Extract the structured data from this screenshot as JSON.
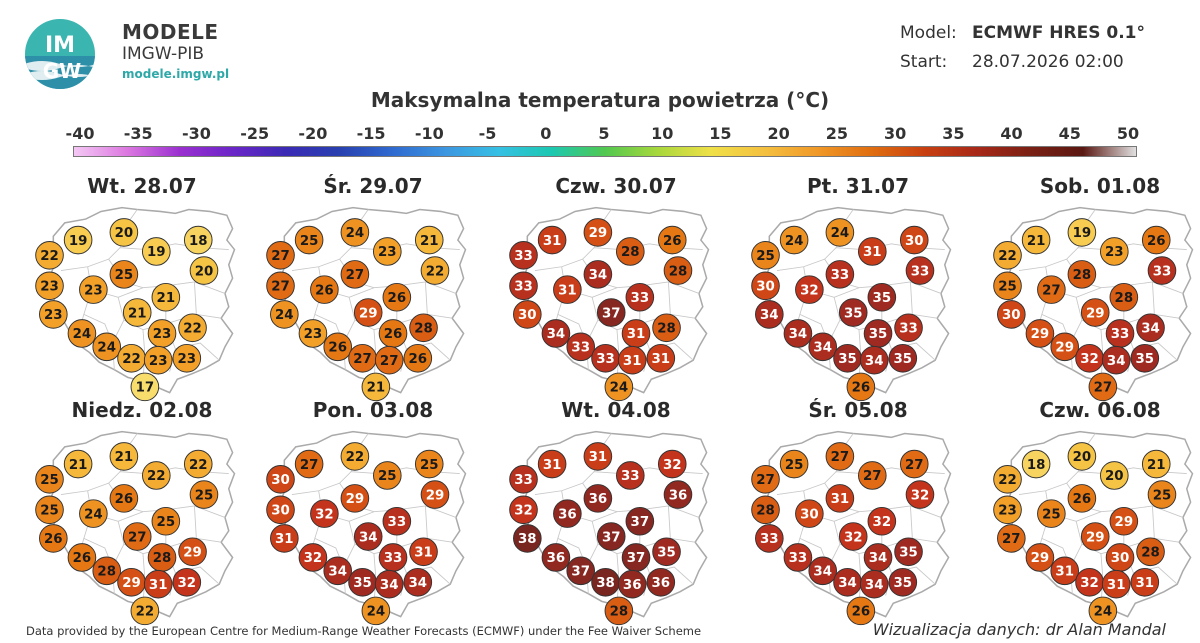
{
  "brand": {
    "logo_text_top": "IM",
    "logo_text_bottom": "GW",
    "title": "MODELE",
    "subtitle": "IMGW-PIB",
    "url": "modele.imgw.pl"
  },
  "meta": {
    "model_label": "Model:",
    "model_value": "ECMWF HRES 0.1°",
    "start_label": "Start:",
    "start_value": "28.07.2026 02:00"
  },
  "scale": {
    "title": "Maksymalna temperatura powietrza (°C)",
    "ticks": [
      "-40",
      "-35",
      "-30",
      "-25",
      "-20",
      "-15",
      "-10",
      "-5",
      "0",
      "5",
      "10",
      "15",
      "20",
      "25",
      "30",
      "35",
      "40",
      "45",
      "50"
    ]
  },
  "map_data": {
    "type": "choropleth-points",
    "value_unit": "°C",
    "color_stops": [
      {
        "t": 17,
        "color": "#f8dc6c"
      },
      {
        "t": 20,
        "color": "#f6c444"
      },
      {
        "t": 23,
        "color": "#f2a028"
      },
      {
        "t": 26,
        "color": "#e67814"
      },
      {
        "t": 29,
        "color": "#d45014"
      },
      {
        "t": 32,
        "color": "#c4341c"
      },
      {
        "t": 35,
        "color": "#9e2a22"
      },
      {
        "t": 38,
        "color": "#7a2620"
      }
    ],
    "panels": [
      {
        "date": "Wt. 28.07",
        "values": [
          19,
          20,
          18,
          22,
          19,
          20,
          23,
          23,
          25,
          23,
          21,
          21,
          24,
          23,
          22,
          24,
          22,
          23,
          23,
          17
        ]
      },
      {
        "date": "Śr. 29.07",
        "values": [
          25,
          24,
          21,
          27,
          23,
          22,
          27,
          26,
          27,
          24,
          29,
          26,
          23,
          26,
          28,
          26,
          27,
          27,
          26,
          21
        ]
      },
      {
        "date": "Czw. 30.07",
        "values": [
          31,
          29,
          26,
          33,
          28,
          28,
          33,
          31,
          34,
          30,
          37,
          33,
          34,
          31,
          28,
          33,
          33,
          31,
          31,
          24
        ]
      },
      {
        "date": "Pt. 31.07",
        "values": [
          24,
          24,
          30,
          25,
          31,
          33,
          30,
          32,
          33,
          34,
          35,
          35,
          34,
          35,
          33,
          34,
          35,
          34,
          35,
          26
        ]
      },
      {
        "date": "Sob. 01.08",
        "values": [
          21,
          19,
          26,
          22,
          23,
          33,
          25,
          27,
          28,
          30,
          29,
          28,
          29,
          33,
          34,
          29,
          32,
          34,
          35,
          27
        ]
      },
      {
        "date": "Niedz. 02.08",
        "values": [
          21,
          21,
          22,
          25,
          22,
          25,
          25,
          24,
          26,
          26,
          27,
          25,
          26,
          28,
          29,
          28,
          29,
          31,
          32,
          22
        ]
      },
      {
        "date": "Pon. 03.08",
        "values": [
          27,
          22,
          25,
          30,
          25,
          29,
          30,
          32,
          29,
          31,
          34,
          33,
          32,
          33,
          31,
          34,
          35,
          34,
          34,
          24
        ]
      },
      {
        "date": "Wt. 04.08",
        "values": [
          31,
          31,
          32,
          33,
          33,
          36,
          32,
          36,
          36,
          38,
          37,
          37,
          36,
          37,
          35,
          37,
          38,
          36,
          36,
          28
        ]
      },
      {
        "date": "Śr. 05.08",
        "values": [
          25,
          27,
          27,
          27,
          27,
          32,
          28,
          30,
          31,
          33,
          32,
          32,
          33,
          34,
          35,
          34,
          34,
          34,
          35,
          26
        ]
      },
      {
        "date": "Czw. 06.08",
        "values": [
          18,
          20,
          21,
          22,
          20,
          25,
          23,
          25,
          26,
          27,
          29,
          29,
          29,
          30,
          28,
          31,
          32,
          31,
          31,
          24
        ]
      }
    ]
  },
  "footer": {
    "credit": "Data provided by the European Centre for Medium-Range Weather Forecasts (ECMWF) under the Fee Waiver Scheme",
    "visualization": "Wizualizacja danych: dr Alan Mandal"
  }
}
